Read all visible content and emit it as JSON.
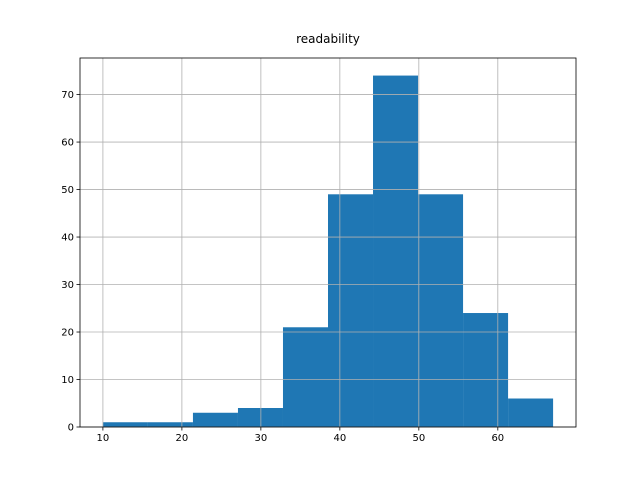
{
  "chart_data": {
    "type": "histogram",
    "title": "readability",
    "bins": [
      10,
      15.7,
      21.4,
      27.1,
      32.8,
      38.5,
      44.2,
      49.9,
      55.6,
      61.3,
      67
    ],
    "values": [
      1,
      1,
      3,
      4,
      21,
      49,
      74,
      49,
      24,
      6
    ],
    "color": "#1f77b4",
    "xlim": [
      7.1,
      69.9
    ],
    "xticks": [
      10,
      20,
      30,
      40,
      50,
      60
    ],
    "ylim": [
      0,
      77.7
    ],
    "yticks": [
      0,
      10,
      20,
      30,
      40,
      50,
      60,
      70
    ],
    "grid": true
  }
}
